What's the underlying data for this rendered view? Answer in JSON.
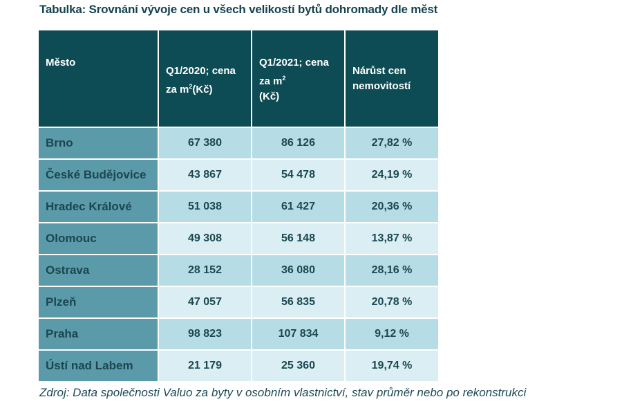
{
  "title": "Tabulka: Srovnání vývoje cen u všech velikostí bytů dohromady dle měst",
  "headers": {
    "city": "Město",
    "q2020_a": "Q1/2020; cena za m",
    "q2020_sup": "2",
    "q2020_b": "(Kč)",
    "q2021_a": "Q1/2021; cena za m",
    "q2021_sup": "2",
    "q2021_b": "(Kč)",
    "growth": "Nárůst cen nemovitostí"
  },
  "rows": [
    {
      "city": "Brno",
      "q2020": "67 380",
      "q2021": "86 126",
      "growth": "27,82 %"
    },
    {
      "city": "České Budějovice",
      "q2020": "43 867",
      "q2021": "54 478",
      "growth": "24,19 %"
    },
    {
      "city": "Hradec Králové",
      "q2020": "51 038",
      "q2021": "61 427",
      "growth": "20,36 %"
    },
    {
      "city": "Olomouc",
      "q2020": "49 308",
      "q2021": "56 148",
      "growth": "13,87 %"
    },
    {
      "city": "Ostrava",
      "q2020": "28 152",
      "q2021": "36 080",
      "growth": "28,16 %"
    },
    {
      "city": "Plzeň",
      "q2020": "47 057",
      "q2021": "56 835",
      "growth": "20,78 %"
    },
    {
      "city": "Praha",
      "q2020": "98 823",
      "q2021": "107 834",
      "growth": "9,12 %"
    },
    {
      "city": "Ústí nad Labem",
      "q2020": "21 179",
      "q2021": "25 360",
      "growth": "19,74 %"
    }
  ],
  "source": "Zdroj: Data společnosti Valuo za byty v osobním vlastnictví, stav průměr nebo po rekonstrukci",
  "colors": {
    "header": "#0e4c55",
    "city_column": "#5b9aa8",
    "row_dark": "#b6dce6",
    "row_light": "#daeef3",
    "text": "#1a4750"
  }
}
